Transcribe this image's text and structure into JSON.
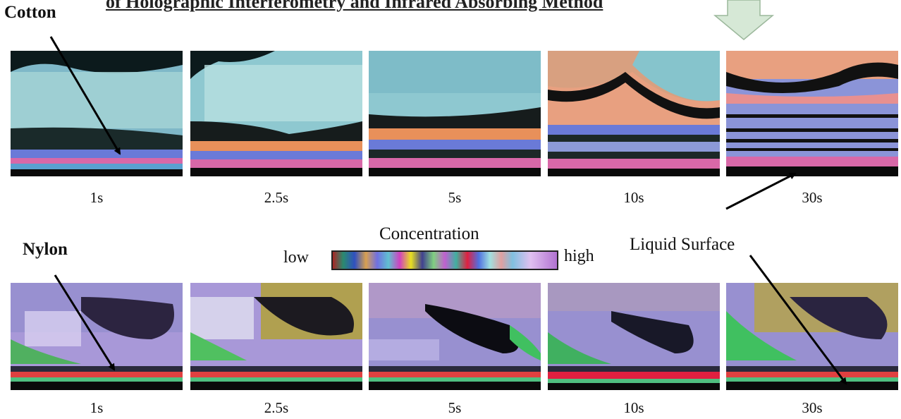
{
  "title": "of Holographic Interferometry and Infrared Absorbing Method",
  "rows": [
    {
      "label": "Cotton",
      "times": [
        "1s",
        "2.5s",
        "5s",
        "10s",
        "30s"
      ]
    },
    {
      "label": "Nylon",
      "times": [
        "1s",
        "2.5s",
        "5s",
        "10s",
        "30s"
      ]
    }
  ],
  "scale": {
    "title": "Concentration",
    "low": "low",
    "high": "high"
  },
  "annotation": "Liquid Surface",
  "colors": {
    "arrow_fill": "#d6e8d6",
    "arrow_stroke": "#9cb89c"
  }
}
